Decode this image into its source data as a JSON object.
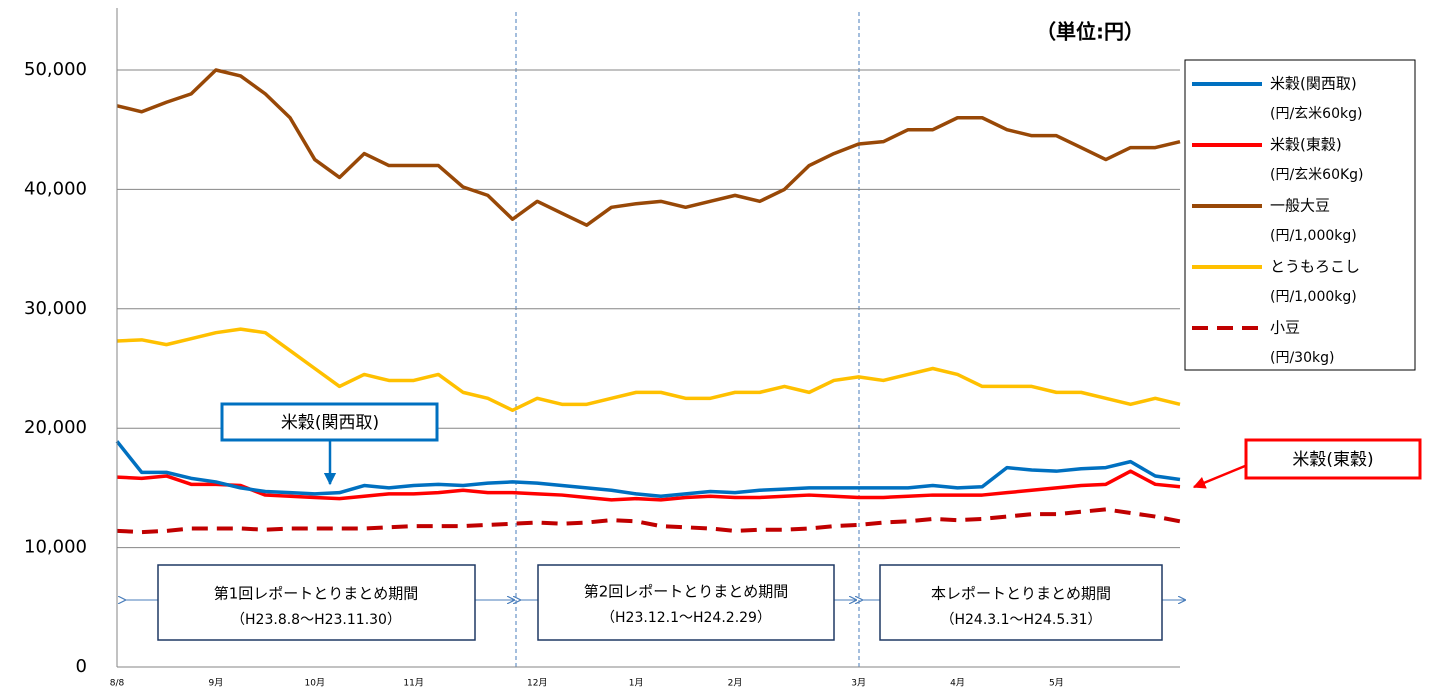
{
  "chart_data": {
    "type": "line",
    "unit_note": "（単位:円）",
    "categories": [
      "8/8",
      null,
      null,
      null,
      "9月",
      null,
      null,
      null,
      "10月",
      null,
      null,
      null,
      "11月",
      null,
      null,
      null,
      null,
      "12月",
      null,
      null,
      null,
      "1月",
      null,
      null,
      null,
      "2月",
      null,
      null,
      null,
      null,
      "3月",
      null,
      null,
      null,
      "4月",
      null,
      null,
      null,
      "5月",
      null,
      null,
      null,
      null,
      null
    ],
    "series": [
      {
        "name": "米穀(関西取)",
        "unit": "(円/玄米60kg)",
        "color": "#0070c0",
        "style": "solid",
        "values": [
          18900,
          16300,
          16300,
          15800,
          15500,
          15000,
          14700,
          14600,
          14500,
          14600,
          15200,
          15000,
          15200,
          15300,
          15200,
          15400,
          15500,
          15400,
          15200,
          15000,
          14800,
          14500,
          14300,
          14500,
          14700,
          14600,
          14800,
          14900,
          15000,
          15000,
          15000,
          15000,
          15000,
          15200,
          15000,
          15100,
          16700,
          16500,
          16400,
          16600,
          16700,
          17200,
          16000,
          15700
        ]
      },
      {
        "name": "米穀(東穀)",
        "unit": "(円/玄米60Kg)",
        "color": "#ff0000",
        "style": "solid",
        "values": [
          15900,
          15800,
          16000,
          15300,
          15300,
          15200,
          14400,
          14300,
          14200,
          14100,
          14300,
          14500,
          14500,
          14600,
          14800,
          14600,
          14600,
          14500,
          14400,
          14200,
          14000,
          14100,
          14000,
          14200,
          14300,
          14200,
          14200,
          14300,
          14400,
          14300,
          14200,
          14200,
          14300,
          14400,
          14400,
          14400,
          14600,
          14800,
          15000,
          15200,
          15300,
          16400,
          15300,
          15100
        ]
      },
      {
        "name": "一般大豆",
        "unit": "(円/1,000kg)",
        "color": "#984807",
        "style": "solid",
        "values": [
          47000,
          46500,
          47300,
          48000,
          50000,
          49500,
          48000,
          46000,
          42500,
          41000,
          43000,
          42000,
          42000,
          42000,
          40200,
          39500,
          37500,
          39000,
          38000,
          37000,
          38500,
          38800,
          39000,
          38500,
          39000,
          39500,
          39000,
          40000,
          42000,
          43000,
          43800,
          44000,
          45000,
          45000,
          46000,
          46000,
          45000,
          44500,
          44500,
          43500,
          42500,
          43500,
          43500,
          44000
        ]
      },
      {
        "name": "とうもろこし",
        "unit": "(円/1,000kg)",
        "color": "#ffc000",
        "style": "solid",
        "values": [
          27300,
          27400,
          27000,
          27500,
          28000,
          28300,
          28000,
          26500,
          25000,
          23500,
          24500,
          24000,
          24000,
          24500,
          23000,
          22500,
          21500,
          22500,
          22000,
          22000,
          22500,
          23000,
          23000,
          22500,
          22500,
          23000,
          23000,
          23500,
          23000,
          24000,
          24300,
          24000,
          24500,
          25000,
          24500,
          23500,
          23500,
          23500,
          23000,
          23000,
          22500,
          22000,
          22500,
          22000
        ]
      },
      {
        "name": "小豆",
        "unit": "(円/30kg)",
        "color": "#c00000",
        "style": "dashed",
        "values": [
          11400,
          11300,
          11400,
          11600,
          11600,
          11600,
          11500,
          11600,
          11600,
          11600,
          11600,
          11700,
          11800,
          11800,
          11800,
          11900,
          12000,
          12100,
          12000,
          12100,
          12300,
          12200,
          11800,
          11700,
          11600,
          11400,
          11500,
          11500,
          11600,
          11800,
          11900,
          12100,
          12200,
          12400,
          12300,
          12400,
          12600,
          12800,
          12800,
          13000,
          13200,
          12900,
          12600,
          12200
        ]
      }
    ],
    "ylim": [
      0,
      55000
    ],
    "yticks": [
      0,
      {
        "value": 10000,
        "label": "10,000"
      },
      {
        "value": 20000,
        "label": "20,000"
      },
      {
        "value": 30000,
        "label": "30,000"
      },
      {
        "value": 40000,
        "label": "40,000"
      },
      {
        "value": 50000,
        "label": "50,000"
      }
    ],
    "grid": true,
    "legend": "right",
    "callouts": [
      "米穀(関西取)",
      "米穀(東穀)"
    ],
    "periods": [
      {
        "title": "第1回レポートとりまとめ期間",
        "range": "（H23.8.8～H23.11.30）"
      },
      {
        "title": "第2回レポートとりまとめ期間",
        "range": "（H23.12.1～H24.2.29）"
      },
      {
        "title": "本レポートとりまとめ期間",
        "range": "（H24.3.1～H24.5.31）"
      }
    ]
  }
}
